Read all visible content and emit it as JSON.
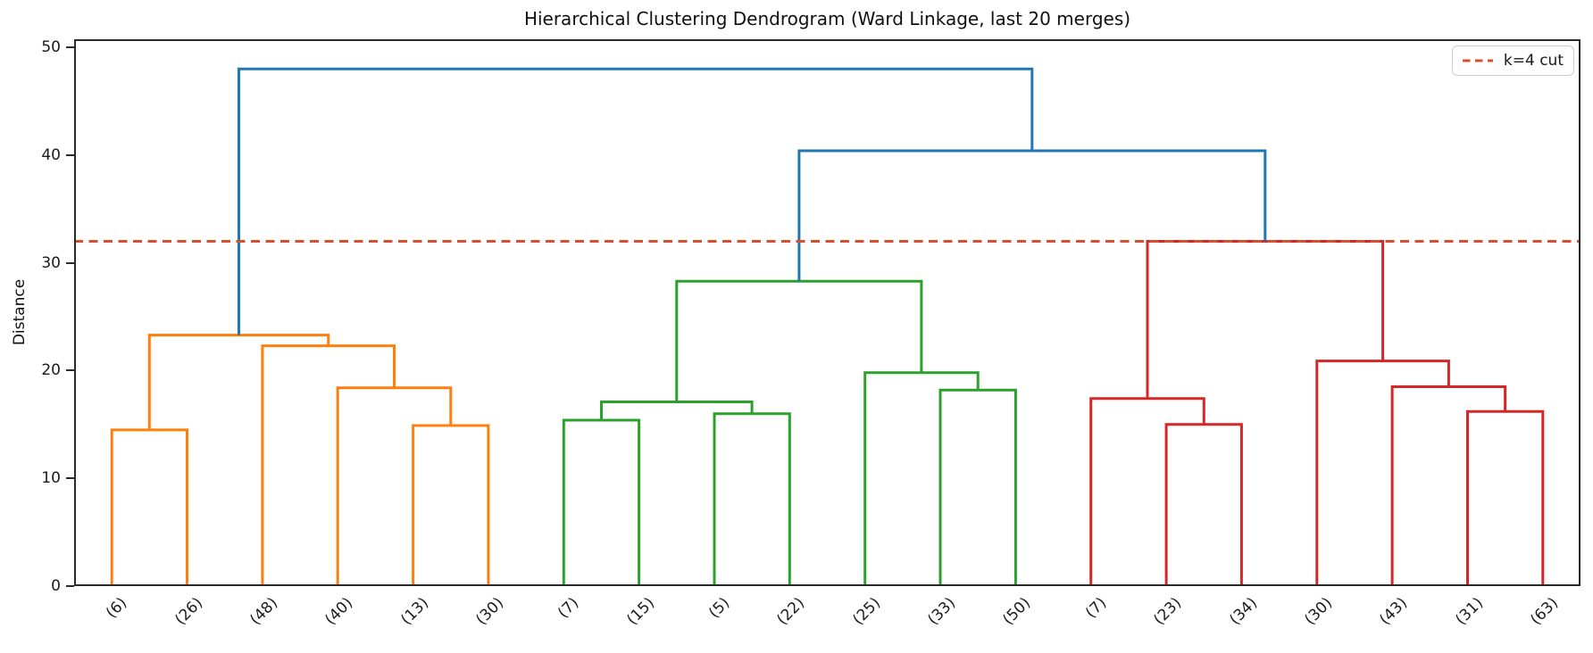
{
  "figure": {
    "title": "Hierarchical Clustering Dendrogram (Ward Linkage, last 20 merges)",
    "ylabel": "Distance",
    "legend": {
      "label": "k=4 cut"
    }
  },
  "chart_data": {
    "type": "dendrogram",
    "title": "Hierarchical Clustering Dendrogram (Ward Linkage, last 20 merges)",
    "xlabel": "",
    "ylabel": "Distance",
    "ylim": [
      0,
      50.75
    ],
    "yticks": [
      0,
      10,
      20,
      30,
      40,
      50
    ],
    "grid": false,
    "legend_position": "upper right",
    "linkage": "ward",
    "truncation": "last 20 merges",
    "colors": {
      "orange": "#ff7f0e",
      "green": "#2ca02c",
      "red": "#d62728",
      "blue": "#1f77b4",
      "cut": "#d6512d",
      "spine": "#2a2a2a"
    },
    "leaves": [
      {
        "label": "(6)",
        "cluster": "orange"
      },
      {
        "label": "(26)",
        "cluster": "orange"
      },
      {
        "label": "(48)",
        "cluster": "orange"
      },
      {
        "label": "(40)",
        "cluster": "orange"
      },
      {
        "label": "(13)",
        "cluster": "orange"
      },
      {
        "label": "(30)",
        "cluster": "orange"
      },
      {
        "label": "(7)",
        "cluster": "green"
      },
      {
        "label": "(15)",
        "cluster": "green"
      },
      {
        "label": "(5)",
        "cluster": "green"
      },
      {
        "label": "(22)",
        "cluster": "green"
      },
      {
        "label": "(25)",
        "cluster": "green"
      },
      {
        "label": "(33)",
        "cluster": "green"
      },
      {
        "label": "(50)",
        "cluster": "green"
      },
      {
        "label": "(7)",
        "cluster": "red"
      },
      {
        "label": "(23)",
        "cluster": "red"
      },
      {
        "label": "(34)",
        "cluster": "red"
      },
      {
        "label": "(30)",
        "cluster": "red"
      },
      {
        "label": "(43)",
        "cluster": "red"
      },
      {
        "label": "(31)",
        "cluster": "red"
      },
      {
        "label": "(63)",
        "cluster": "red"
      }
    ],
    "merges": [
      {
        "id": "M1",
        "left": "L0",
        "right": "L1",
        "height": 14.5,
        "color": "orange"
      },
      {
        "id": "M2",
        "left": "L4",
        "right": "L5",
        "height": 14.9,
        "color": "orange"
      },
      {
        "id": "M3",
        "left": "L3",
        "right": "M2",
        "height": 18.4,
        "color": "orange"
      },
      {
        "id": "M4",
        "left": "L2",
        "right": "M3",
        "height": 22.3,
        "color": "orange"
      },
      {
        "id": "M5",
        "left": "M1",
        "right": "M4",
        "height": 23.3,
        "color": "orange"
      },
      {
        "id": "M6",
        "left": "L6",
        "right": "L7",
        "height": 15.4,
        "color": "green"
      },
      {
        "id": "M7",
        "left": "L8",
        "right": "L9",
        "height": 16.0,
        "color": "green"
      },
      {
        "id": "M8",
        "left": "M6",
        "right": "M7",
        "height": 17.1,
        "color": "green"
      },
      {
        "id": "M9",
        "left": "L11",
        "right": "L12",
        "height": 18.2,
        "color": "green"
      },
      {
        "id": "M10",
        "left": "L10",
        "right": "M9",
        "height": 19.8,
        "color": "green"
      },
      {
        "id": "M11",
        "left": "M8",
        "right": "M10",
        "height": 28.3,
        "color": "green"
      },
      {
        "id": "M12",
        "left": "L14",
        "right": "L15",
        "height": 15.0,
        "color": "red"
      },
      {
        "id": "M13",
        "left": "L13",
        "right": "M12",
        "height": 17.4,
        "color": "red"
      },
      {
        "id": "M14",
        "left": "L18",
        "right": "L19",
        "height": 16.2,
        "color": "red"
      },
      {
        "id": "M15",
        "left": "L17",
        "right": "M14",
        "height": 18.5,
        "color": "red"
      },
      {
        "id": "M16",
        "left": "L16",
        "right": "M15",
        "height": 20.9,
        "color": "red"
      },
      {
        "id": "M17",
        "left": "M13",
        "right": "M16",
        "height": 32.0,
        "color": "red"
      },
      {
        "id": "M18",
        "left": "M11",
        "right": "M17",
        "height": 40.4,
        "color": "blue"
      },
      {
        "id": "M19",
        "left": "M5",
        "right": "M18",
        "height": 48.0,
        "color": "blue"
      }
    ],
    "cut_line": {
      "value": 32,
      "label": "k=4 cut",
      "style": "dashed",
      "color": "#d6512d"
    }
  }
}
